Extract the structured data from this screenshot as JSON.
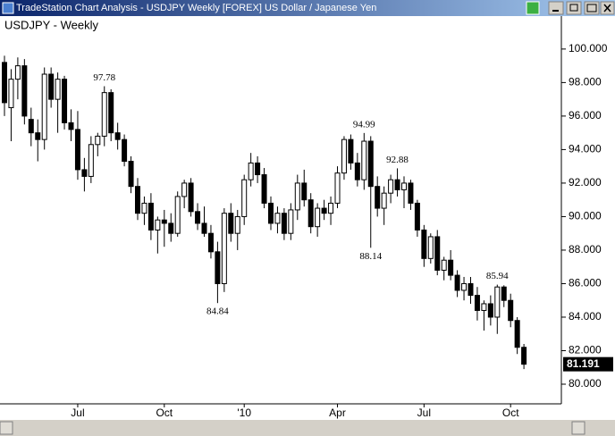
{
  "window": {
    "title": "TradeStation Chart Analysis - USDJPY Weekly [FOREX] US Dollar / Japanese Yen"
  },
  "chart_data": {
    "type": "candlestick",
    "title": "USDJPY - Weekly",
    "open": [
      99.2,
      96.5,
      98.2,
      99.0,
      95.8,
      95.0,
      94.6,
      98.5,
      97.0,
      98.2,
      95.6,
      95.2,
      92.8,
      92.4,
      94.3,
      94.8,
      97.4,
      95.0,
      94.6,
      93.3,
      91.8,
      90.2,
      90.8,
      89.2,
      89.8,
      89.6,
      89.0,
      91.2,
      92.0,
      90.3,
      89.6,
      89.0,
      87.9,
      86.0,
      90.2,
      89.0,
      90.0,
      92.2,
      93.2,
      92.5,
      90.8,
      89.6,
      90.2,
      89.0,
      90.4,
      92.0,
      91.0,
      89.4,
      90.5,
      90.2,
      90.8,
      92.6,
      94.6,
      93.2,
      92.2,
      94.5,
      91.8,
      90.5,
      91.4,
      92.2,
      91.6,
      92.0,
      90.8,
      89.2,
      87.5,
      88.8,
      86.8,
      87.4,
      86.5,
      85.6,
      86.0,
      85.3,
      84.4,
      84.8,
      84.0,
      85.8,
      85.0,
      83.8,
      82.2
    ],
    "high": [
      99.6,
      98.8,
      99.5,
      99.4,
      96.5,
      95.8,
      98.9,
      98.9,
      98.6,
      98.4,
      96.4,
      96.3,
      93.5,
      94.8,
      95.0,
      97.78,
      97.6,
      95.6,
      94.9,
      93.6,
      92.3,
      91.2,
      91.4,
      90.0,
      90.4,
      90.2,
      91.5,
      92.2,
      92.3,
      90.8,
      90.6,
      89.5,
      88.5,
      90.5,
      90.8,
      90.4,
      92.5,
      93.8,
      93.6,
      92.9,
      91.2,
      90.6,
      90.5,
      90.8,
      92.5,
      92.8,
      91.4,
      90.8,
      91.0,
      91.2,
      93.0,
      94.8,
      94.9,
      93.8,
      94.99,
      94.8,
      92.4,
      91.8,
      92.5,
      92.88,
      92.4,
      92.2,
      91.0,
      89.5,
      89.0,
      89.2,
      87.6,
      88.0,
      86.8,
      86.4,
      86.4,
      85.8,
      85.0,
      85.3,
      85.94,
      85.9,
      85.4,
      84.0,
      82.4
    ],
    "low": [
      96.0,
      94.5,
      97.0,
      95.5,
      94.2,
      93.3,
      94.0,
      96.5,
      95.0,
      95.2,
      94.5,
      92.2,
      91.5,
      92.0,
      93.6,
      94.2,
      94.5,
      94.0,
      93.0,
      91.4,
      89.8,
      89.5,
      88.6,
      87.8,
      88.2,
      88.5,
      88.8,
      90.5,
      90.0,
      89.2,
      88.8,
      87.5,
      84.84,
      85.5,
      88.5,
      88.0,
      89.5,
      91.8,
      92.0,
      90.5,
      89.2,
      89.0,
      88.6,
      88.6,
      89.8,
      90.6,
      89.0,
      88.8,
      89.8,
      89.5,
      90.5,
      92.2,
      92.8,
      91.8,
      91.6,
      88.14,
      90.0,
      89.5,
      90.8,
      91.2,
      90.5,
      90.4,
      88.8,
      87.0,
      87.2,
      86.5,
      86.2,
      86.2,
      85.2,
      85.0,
      84.8,
      83.8,
      83.2,
      83.5,
      83.0,
      84.6,
      83.4,
      81.8,
      80.9
    ],
    "close": [
      96.8,
      98.2,
      99.0,
      96.0,
      95.0,
      94.6,
      98.5,
      97.0,
      98.2,
      95.6,
      95.2,
      92.8,
      92.4,
      94.3,
      94.8,
      97.4,
      95.0,
      94.6,
      93.3,
      91.8,
      90.2,
      90.8,
      89.2,
      89.8,
      89.6,
      89.0,
      91.2,
      92.0,
      90.3,
      89.6,
      89.0,
      87.9,
      86.0,
      90.2,
      89.0,
      90.0,
      92.2,
      93.2,
      92.5,
      90.8,
      89.6,
      90.2,
      89.0,
      90.4,
      92.0,
      91.0,
      89.4,
      90.5,
      90.2,
      90.8,
      92.6,
      94.6,
      93.2,
      92.2,
      94.5,
      91.8,
      90.5,
      91.4,
      92.2,
      91.6,
      92.0,
      90.8,
      89.2,
      87.5,
      88.8,
      86.8,
      87.4,
      86.5,
      85.6,
      86.0,
      85.3,
      84.4,
      84.8,
      84.0,
      85.8,
      85.0,
      83.8,
      82.2,
      81.191
    ],
    "label_highs": [
      97.78,
      94.99,
      92.88,
      85.94
    ],
    "label_lows": [
      84.84,
      88.14
    ],
    "last_value": 81.191,
    "ylim": [
      79.2,
      100.9
    ],
    "yticks": [
      {
        "value": 80,
        "label": "80.000"
      },
      {
        "value": 82,
        "label": "82.000"
      },
      {
        "value": 84,
        "label": "84.000"
      },
      {
        "value": 86,
        "label": "86.000"
      },
      {
        "value": 88,
        "label": "88.000"
      },
      {
        "value": 90,
        "label": "90.000"
      },
      {
        "value": 92,
        "label": "92.000"
      },
      {
        "value": 94,
        "label": "94.000"
      },
      {
        "value": 96,
        "label": "96.000"
      },
      {
        "value": 98,
        "label": "98.000"
      },
      {
        "value": 100,
        "label": "100.000"
      }
    ],
    "xticks": [
      {
        "value": 11,
        "label": "Jul"
      },
      {
        "value": 24,
        "label": "Oct"
      },
      {
        "value": 36,
        "label": "'10"
      },
      {
        "value": 50,
        "label": "Apr"
      },
      {
        "value": 63,
        "label": "Jul"
      },
      {
        "value": 76,
        "label": "Oct"
      }
    ]
  }
}
